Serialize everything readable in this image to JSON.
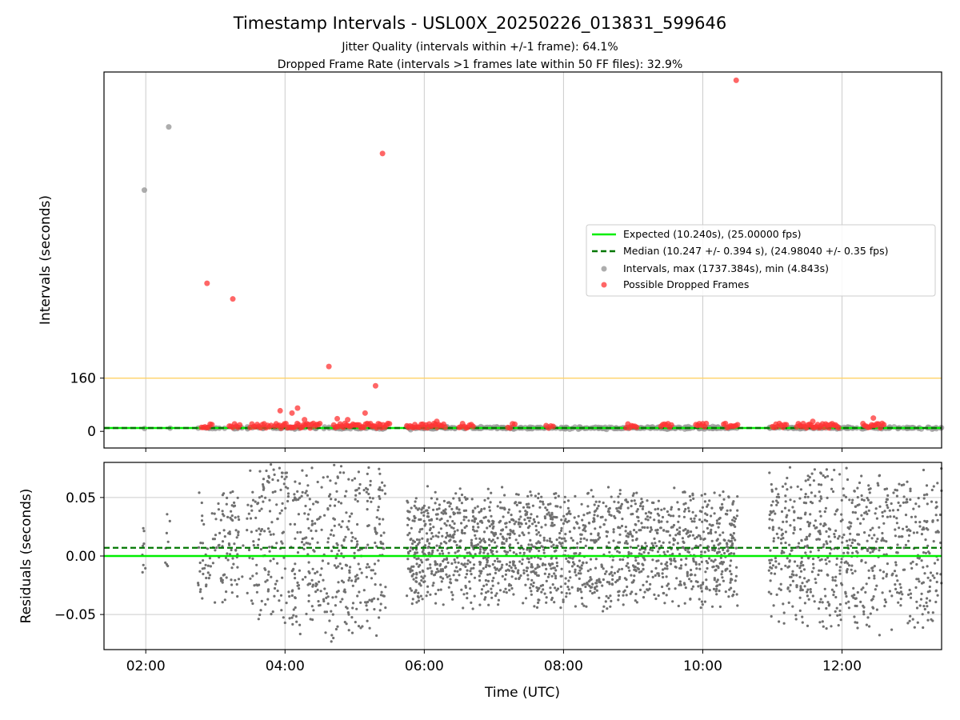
{
  "title": "Timestamp Intervals - USL00X_20250226_013831_599646",
  "subtitle_lines": [
    "Jitter Quality (intervals within +/-1 frame): 64.1%",
    "Dropped Frame Rate (intervals >1 frames late within 50 FF files): 32.9%"
  ],
  "colors": {
    "expected": "#00ee00",
    "median": "#007700",
    "intervals": "#999999",
    "dropped": "#ff3333",
    "threshold": "#ffd266",
    "residuals": "#707070",
    "grid": "#cccccc"
  },
  "chart_data": [
    {
      "type": "scatter",
      "panel": "top",
      "ylabel": "Intervals (seconds)",
      "xlabel": "",
      "x_range_hours": [
        1.4,
        13.43
      ],
      "y_range": [
        -50,
        1080
      ],
      "y_ticks": [
        {
          "value": 0,
          "label": "0"
        },
        {
          "value": 160,
          "label": "160"
        }
      ],
      "x_ticks": [
        {
          "value": 2,
          "label": "02:00"
        },
        {
          "value": 4,
          "label": "04:00"
        },
        {
          "value": 6,
          "label": "06:00"
        },
        {
          "value": 8,
          "label": "08:00"
        },
        {
          "value": 10,
          "label": "10:00"
        },
        {
          "value": 12,
          "label": "12:00"
        }
      ],
      "grid": true,
      "expected_interval": 10.24,
      "median_interval": 10.247,
      "threshold_line": 160,
      "legend_position": "center-right",
      "legend": [
        {
          "kind": "line",
          "style": "solid",
          "label": "Expected (10.240s), (25.00000 fps)"
        },
        {
          "kind": "line",
          "style": "dashed",
          "label": "Median (10.247 +/- 0.394 s), (24.98040 +/- 0.35 fps)"
        },
        {
          "kind": "marker",
          "style": "intervals",
          "label": "Intervals, max (1737.384s), min (4.843s)"
        },
        {
          "kind": "marker",
          "style": "dropped",
          "label": "Possible Dropped Frames"
        }
      ],
      "interval_outliers": [
        {
          "x": 1.98,
          "y": 725
        },
        {
          "x": 2.33,
          "y": 915
        }
      ],
      "dropped_outliers": [
        {
          "x": 2.88,
          "y": 445
        },
        {
          "x": 3.25,
          "y": 398
        },
        {
          "x": 3.93,
          "y": 62
        },
        {
          "x": 4.1,
          "y": 55
        },
        {
          "x": 4.18,
          "y": 70
        },
        {
          "x": 4.28,
          "y": 35
        },
        {
          "x": 4.63,
          "y": 195
        },
        {
          "x": 4.75,
          "y": 38
        },
        {
          "x": 4.9,
          "y": 35
        },
        {
          "x": 5.15,
          "y": 55
        },
        {
          "x": 5.3,
          "y": 137
        },
        {
          "x": 5.4,
          "y": 835
        },
        {
          "x": 6.18,
          "y": 30
        },
        {
          "x": 10.48,
          "y": 1055
        },
        {
          "x": 11.58,
          "y": 30
        },
        {
          "x": 12.45,
          "y": 40
        }
      ],
      "dropped_runs": [
        [
          2.8,
          2.95
        ],
        [
          3.2,
          3.35
        ],
        [
          3.5,
          3.8
        ],
        [
          3.85,
          4.5
        ],
        [
          4.7,
          5.5
        ],
        [
          5.75,
          6.3
        ],
        [
          6.5,
          6.7
        ],
        [
          7.2,
          7.3
        ],
        [
          7.75,
          7.85
        ],
        [
          8.9,
          9.05
        ],
        [
          9.4,
          9.55
        ],
        [
          9.9,
          10.05
        ],
        [
          10.3,
          10.5
        ],
        [
          11.0,
          11.2
        ],
        [
          11.35,
          11.95
        ],
        [
          12.3,
          12.6
        ]
      ]
    },
    {
      "type": "scatter",
      "panel": "bottom",
      "ylabel": "Residuals (seconds)",
      "xlabel": "Time (UTC)",
      "x_range_hours": [
        1.4,
        13.43
      ],
      "y_range": [
        -0.08,
        0.08
      ],
      "y_ticks": [
        {
          "value": 0.05,
          "label": "0.05"
        },
        {
          "value": 0.0,
          "label": "0.00"
        },
        {
          "value": -0.05,
          "label": "−0.05"
        }
      ],
      "x_ticks": [
        {
          "value": 2,
          "label": "02:00"
        },
        {
          "value": 4,
          "label": "04:00"
        },
        {
          "value": 6,
          "label": "06:00"
        },
        {
          "value": 8,
          "label": "08:00"
        },
        {
          "value": 10,
          "label": "10:00"
        },
        {
          "value": 12,
          "label": "12:00"
        }
      ],
      "grid": true,
      "expected_residual": 0.0,
      "median_residual": 0.007,
      "residual_point_groups": [
        {
          "from": 1.95,
          "to": 2.0,
          "count": 8,
          "spread": 0.04
        },
        {
          "from": 2.28,
          "to": 2.35,
          "count": 8,
          "spread": 0.04
        },
        {
          "from": 2.75,
          "to": 3.4,
          "count": 120,
          "spread": 0.055
        },
        {
          "from": 3.45,
          "to": 5.45,
          "count": 520,
          "spread": 0.085
        },
        {
          "from": 5.75,
          "to": 10.5,
          "count": 1700,
          "spread": 0.055
        },
        {
          "from": 10.95,
          "to": 13.43,
          "count": 720,
          "spread": 0.075
        }
      ]
    }
  ]
}
